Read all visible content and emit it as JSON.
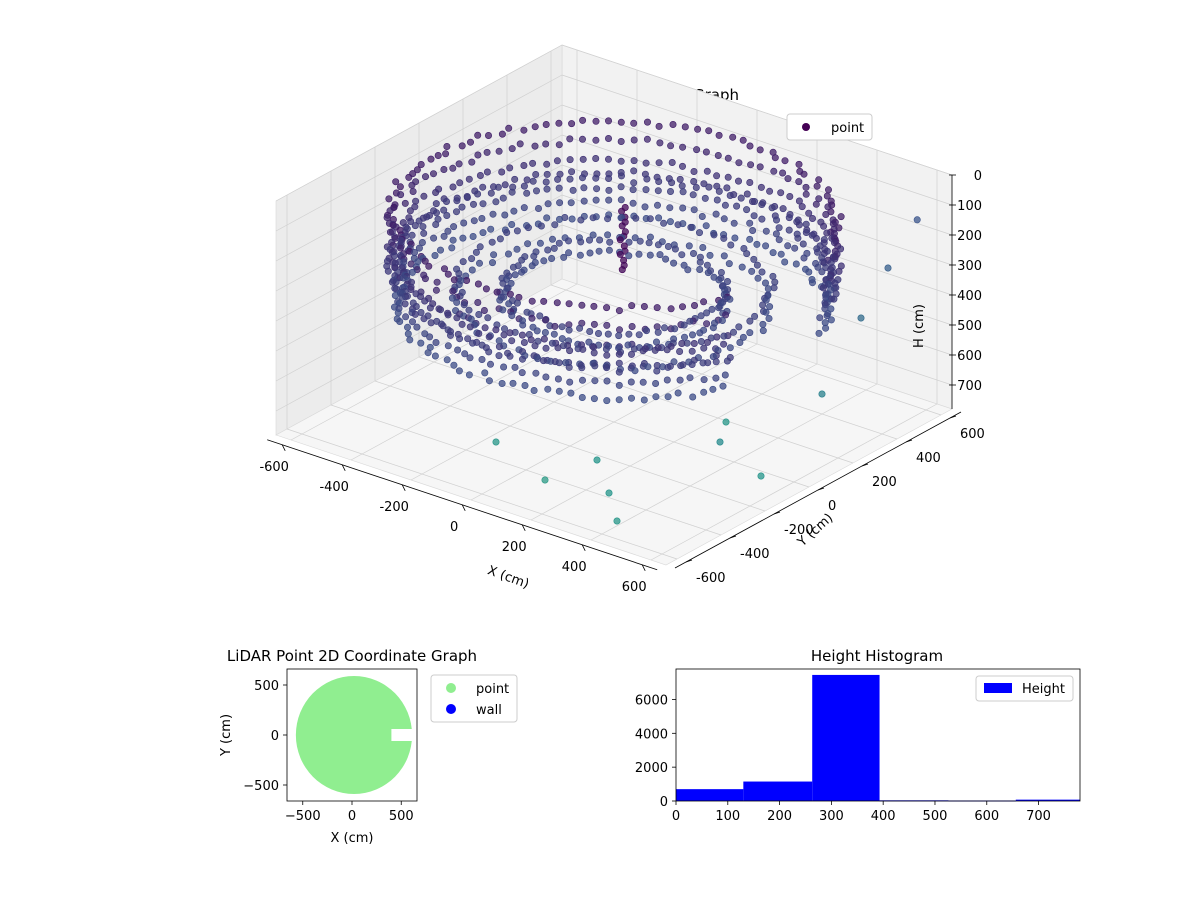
{
  "chart_data": [
    {
      "type": "scatter3d",
      "title": "LiDAR Point 3D Coordinate Graph",
      "xlabel": "X (cm)",
      "ylabel": "Y (cm)",
      "zlabel": "H (cm)",
      "xlim": [
        -650,
        650
      ],
      "ylim": [
        -650,
        650
      ],
      "zlim": [
        0,
        780
      ],
      "z_inverted": true,
      "xticks": [
        "-600",
        "-400",
        "-200",
        "0",
        "200",
        "400",
        "600"
      ],
      "yticks": [
        "-600",
        "-400",
        "-200",
        "0",
        "200",
        "400",
        "600"
      ],
      "zticks": [
        "0",
        "100",
        "200",
        "300",
        "400",
        "500",
        "600",
        "700"
      ],
      "colormap": "viridis",
      "grid": true,
      "legend": {
        "position": "top-right",
        "entries": [
          {
            "name": "point",
            "color": "#440154"
          }
        ]
      },
      "series": [
        {
          "name": "point",
          "rings": [
            {
              "radius": 600,
              "h_min": 90,
              "h_max": 280
            },
            {
              "radius": 580,
              "h_min": 250,
              "h_max": 400
            },
            {
              "radius": 420,
              "h_min": 320,
              "h_max": 380
            },
            {
              "radius": 300,
              "h_min": 330,
              "h_max": 370
            }
          ],
          "column": {
            "x": -60,
            "y": 120,
            "h_min": 130,
            "h_max": 340
          },
          "outliers": [
            {
              "x": 600,
              "y": 560,
              "z": 130
            },
            {
              "x": 620,
              "y": 400,
              "z": 220
            },
            {
              "x": 640,
              "y": 250,
              "z": 320
            },
            {
              "x": 620,
              "y": 100,
              "z": 520
            },
            {
              "x": 600,
              "y": -150,
              "z": 700
            },
            {
              "x": 350,
              "y": -500,
              "z": 700
            },
            {
              "x": 450,
              "y": -600,
              "z": 720
            },
            {
              "x": 200,
              "y": -350,
              "z": 700
            },
            {
              "x": 100,
              "y": -450,
              "z": 760
            },
            {
              "x": -100,
              "y": -400,
              "z": 720
            },
            {
              "x": 500,
              "y": -200,
              "z": 600
            },
            {
              "x": 300,
              "y": 100,
              "z": 720
            }
          ]
        }
      ]
    },
    {
      "type": "scatter",
      "title": "LiDAR Point 2D Coordinate Graph",
      "xlabel": "X (cm)",
      "ylabel": "Y (cm)",
      "xlim": [
        -660,
        660
      ],
      "ylim": [
        -660,
        660
      ],
      "xticks": [
        "−500",
        "0",
        "500"
      ],
      "yticks": [
        "−500",
        "0",
        "500"
      ],
      "legend": {
        "position": "outside-right",
        "entries": [
          {
            "name": "point",
            "color": "#90ee90"
          },
          {
            "name": "wall",
            "color": "#0000ff"
          }
        ]
      },
      "series": [
        {
          "name": "point",
          "color": "#90ee90",
          "shape": "disk",
          "radius": 590,
          "center": [
            20,
            0
          ],
          "gap": {
            "x_from": 400,
            "y_from": -60,
            "y_to": 60
          }
        },
        {
          "name": "wall",
          "color": "#0000ff",
          "values": []
        }
      ]
    },
    {
      "type": "histogram",
      "title": "Height Histogram",
      "xlim": [
        0,
        780
      ],
      "ylim": [
        0,
        7800
      ],
      "xticks": [
        "0",
        "100",
        "200",
        "300",
        "400",
        "500",
        "600",
        "700"
      ],
      "yticks": [
        "0",
        "2000",
        "4000",
        "6000"
      ],
      "bin_edges": [
        0,
        130,
        263,
        393,
        526,
        656,
        780
      ],
      "values": [
        700,
        1150,
        7450,
        40,
        30,
        80
      ],
      "color": "#0000ff",
      "legend": {
        "position": "top-right",
        "entries": [
          {
            "name": "Height",
            "color": "#0000ff"
          }
        ]
      }
    }
  ]
}
